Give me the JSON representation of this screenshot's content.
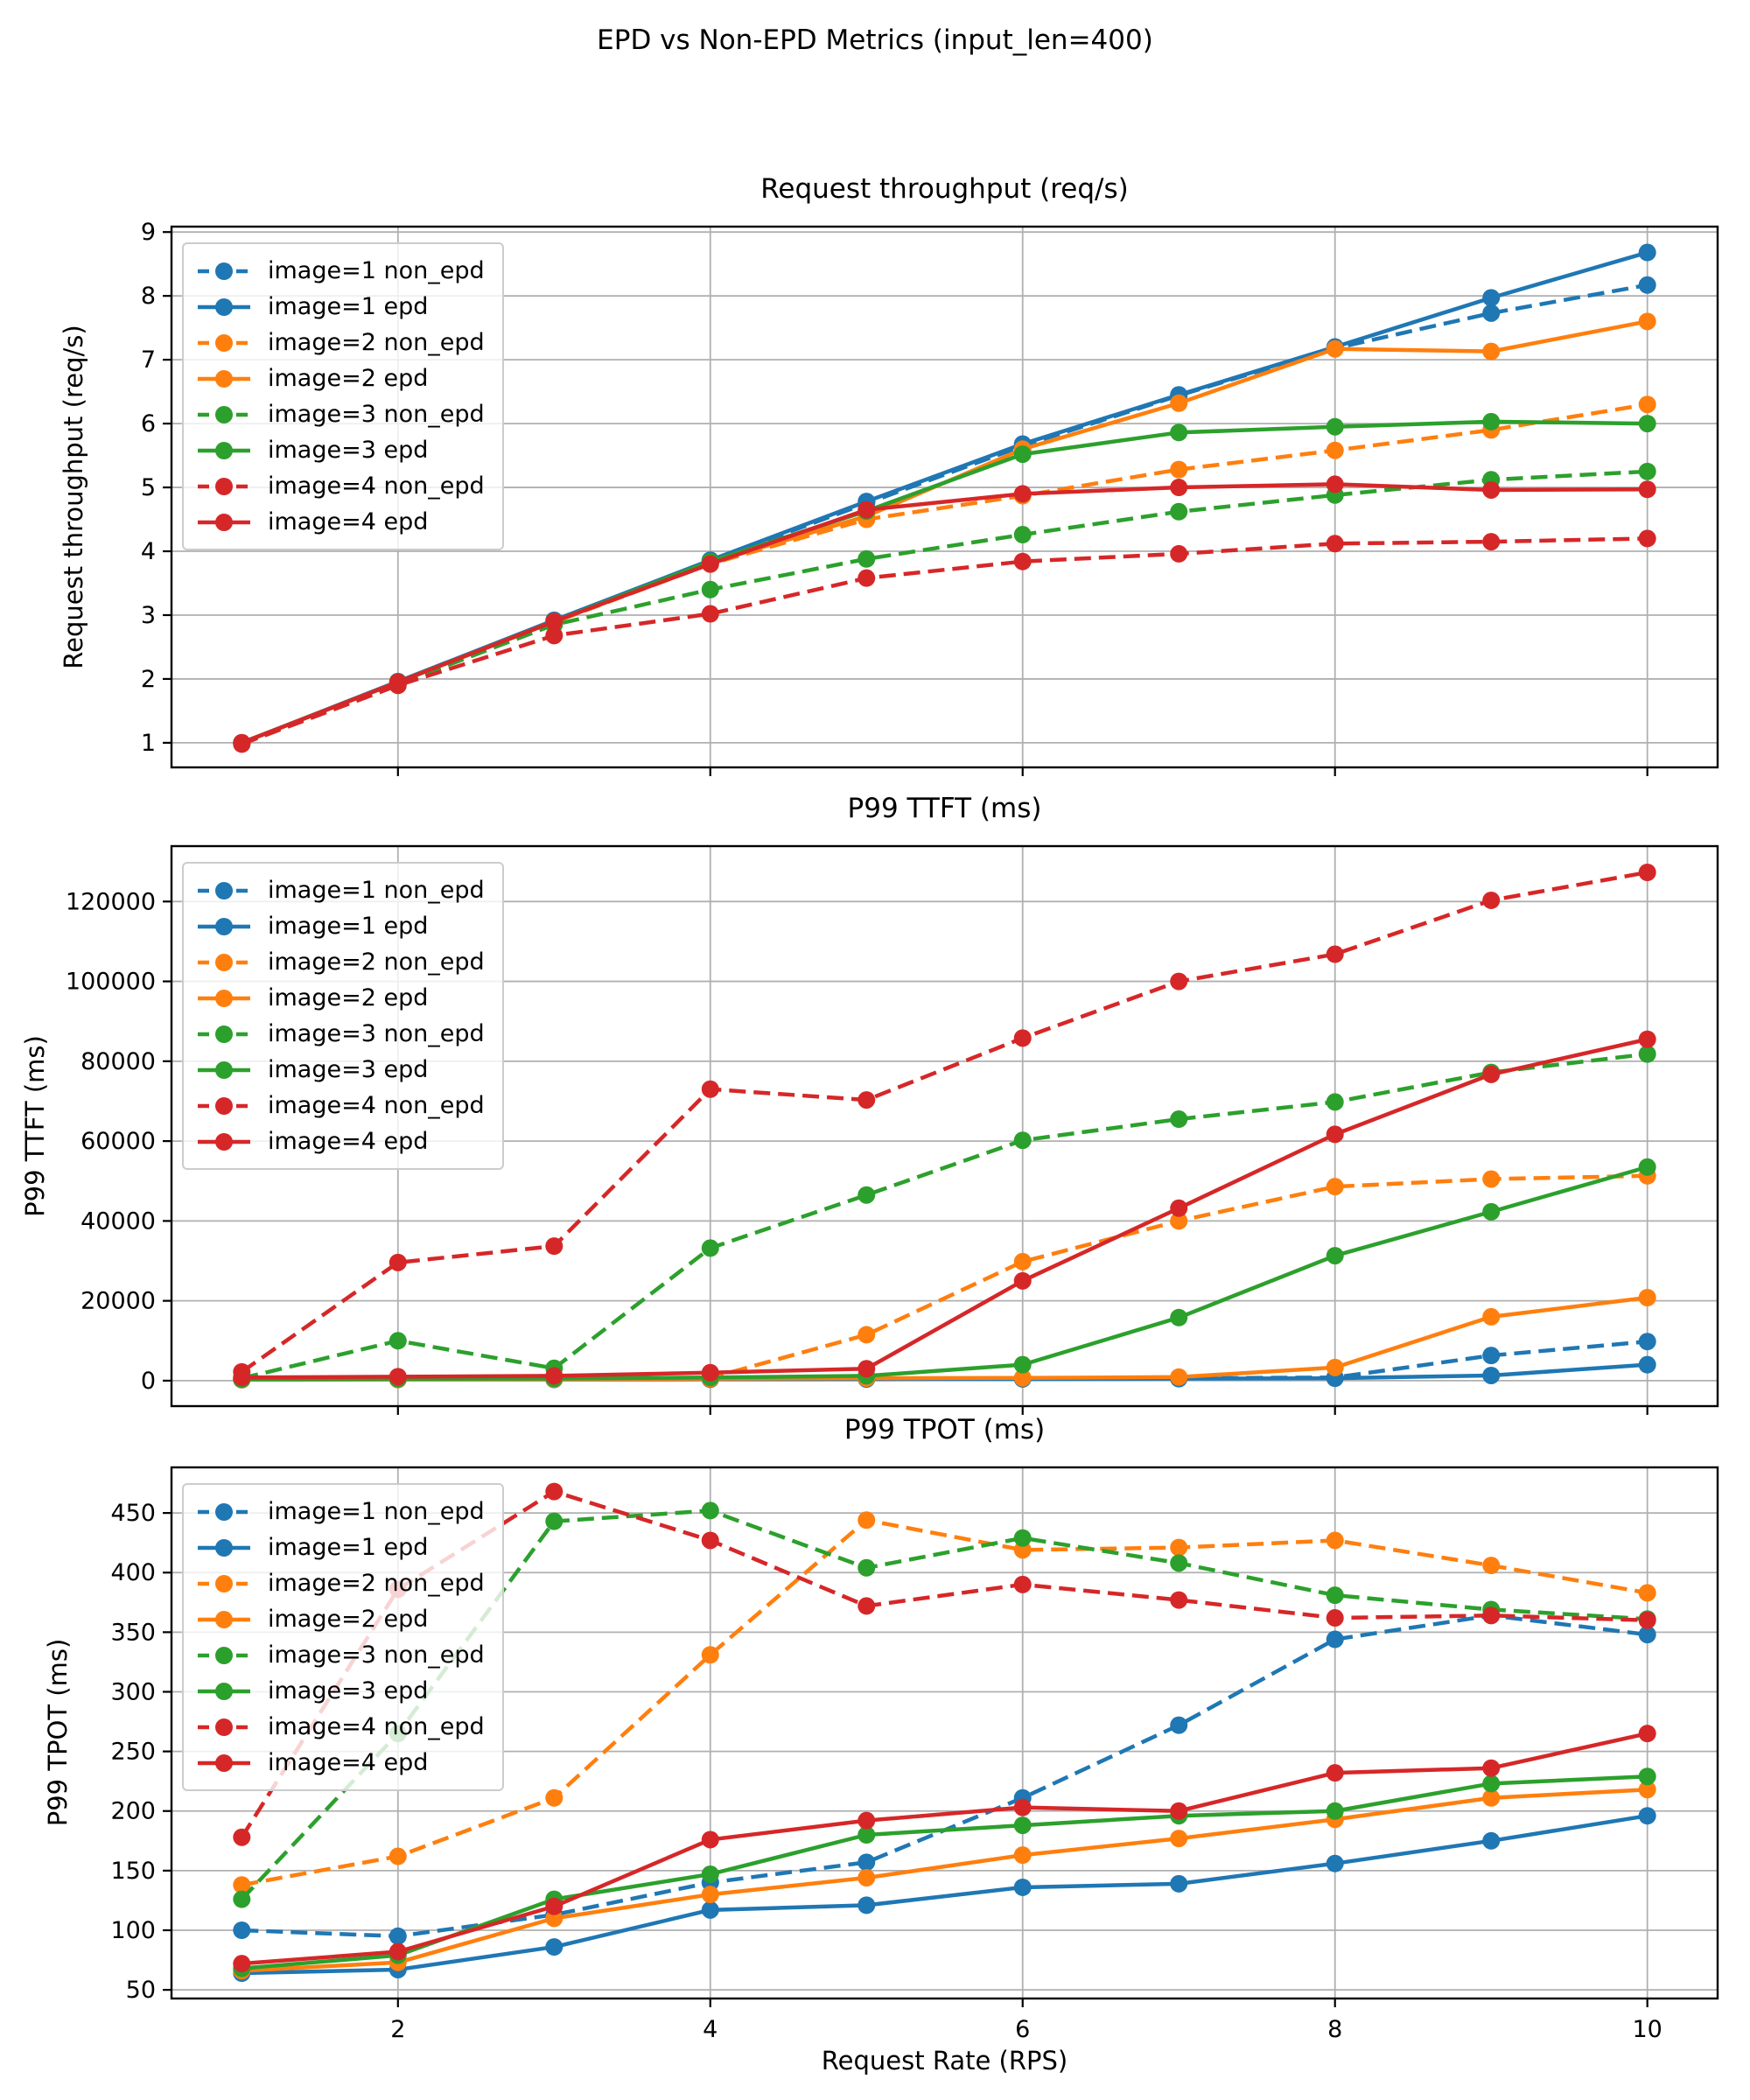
{
  "figure": {
    "suptitle": "EPD vs Non-EPD Metrics (input_len=400)",
    "xlabel": "Request Rate (RPS)"
  },
  "chart_data": [
    {
      "type": "line",
      "title": "Request throughput (req/s)",
      "ylabel": "Request throughput (req/s)",
      "x": [
        1,
        2,
        3,
        4,
        5,
        6,
        7,
        8,
        9,
        10
      ],
      "xlim": [
        0.55,
        10.45
      ],
      "ylim": [
        0.615,
        9.085
      ],
      "xticks": [
        2,
        4,
        6,
        8,
        10
      ],
      "show_xticklabels": false,
      "yticks": [
        1,
        2,
        3,
        4,
        5,
        6,
        7,
        8,
        9
      ],
      "grid": true,
      "legend_position": "upper left",
      "series": [
        {
          "name": "image=1 non_epd",
          "color": "#1f77b4",
          "dashed": true,
          "values": [
            1.0,
            1.95,
            2.9,
            3.85,
            4.75,
            5.65,
            6.44,
            7.18,
            7.73,
            8.17
          ]
        },
        {
          "name": "image=1 epd",
          "color": "#1f77b4",
          "dashed": false,
          "values": [
            1.0,
            1.96,
            2.92,
            3.86,
            4.78,
            5.68,
            6.45,
            7.2,
            7.97,
            8.68
          ]
        },
        {
          "name": "image=2 non_epd",
          "color": "#ff7f0e",
          "dashed": true,
          "values": [
            0.99,
            1.94,
            2.89,
            3.8,
            4.5,
            4.87,
            5.28,
            5.58,
            5.9,
            6.3
          ]
        },
        {
          "name": "image=2 epd",
          "color": "#ff7f0e",
          "dashed": false,
          "values": [
            1.0,
            1.95,
            2.9,
            3.82,
            4.55,
            5.6,
            6.32,
            7.17,
            7.13,
            7.6
          ]
        },
        {
          "name": "image=3 non_epd",
          "color": "#2ca02c",
          "dashed": true,
          "values": [
            0.99,
            1.92,
            2.85,
            3.4,
            3.88,
            4.26,
            4.62,
            4.88,
            5.12,
            5.25
          ]
        },
        {
          "name": "image=3 epd",
          "color": "#2ca02c",
          "dashed": false,
          "values": [
            1.0,
            1.95,
            2.9,
            3.84,
            4.63,
            5.52,
            5.86,
            5.95,
            6.03,
            6.0
          ]
        },
        {
          "name": "image=4 non_epd",
          "color": "#d62728",
          "dashed": true,
          "values": [
            0.98,
            1.9,
            2.68,
            3.02,
            3.58,
            3.84,
            3.96,
            4.12,
            4.15,
            4.2
          ]
        },
        {
          "name": "image=4 epd",
          "color": "#d62728",
          "dashed": false,
          "values": [
            1.0,
            1.95,
            2.9,
            3.8,
            4.65,
            4.9,
            5.0,
            5.05,
            4.96,
            4.97
          ]
        }
      ]
    },
    {
      "type": "line",
      "title": "P99 TTFT (ms)",
      "ylabel": "P99 TTFT (ms)",
      "x": [
        1,
        2,
        3,
        4,
        5,
        6,
        7,
        8,
        9,
        10
      ],
      "xlim": [
        0.55,
        10.45
      ],
      "ylim": [
        -6375,
        133875
      ],
      "xticks": [
        2,
        4,
        6,
        8,
        10
      ],
      "show_xticklabels": false,
      "yticks": [
        0,
        20000,
        40000,
        60000,
        80000,
        100000,
        120000
      ],
      "grid": true,
      "legend_position": "upper left",
      "series": [
        {
          "name": "image=1 non_epd",
          "color": "#1f77b4",
          "dashed": true,
          "values": [
            300,
            350,
            350,
            400,
            450,
            500,
            600,
            800,
            6300,
            9800
          ]
        },
        {
          "name": "image=1 epd",
          "color": "#1f77b4",
          "dashed": false,
          "values": [
            250,
            300,
            300,
            350,
            400,
            450,
            500,
            600,
            1300,
            4000
          ]
        },
        {
          "name": "image=2 non_epd",
          "color": "#ff7f0e",
          "dashed": true,
          "values": [
            350,
            400,
            450,
            700,
            11500,
            29800,
            40000,
            48600,
            50500,
            51300
          ]
        },
        {
          "name": "image=2 epd",
          "color": "#ff7f0e",
          "dashed": false,
          "values": [
            280,
            320,
            380,
            500,
            600,
            700,
            900,
            3300,
            16000,
            20800
          ]
        },
        {
          "name": "image=3 non_epd",
          "color": "#2ca02c",
          "dashed": true,
          "values": [
            600,
            10000,
            3100,
            33200,
            46500,
            60200,
            65500,
            69800,
            77200,
            81800
          ]
        },
        {
          "name": "image=3 epd",
          "color": "#2ca02c",
          "dashed": false,
          "values": [
            350,
            450,
            550,
            800,
            1200,
            4000,
            15800,
            31300,
            42300,
            53500
          ]
        },
        {
          "name": "image=4 non_epd",
          "color": "#d62728",
          "dashed": true,
          "values": [
            2200,
            29600,
            33700,
            73000,
            70300,
            85800,
            100000,
            106800,
            120300,
            127300
          ]
        },
        {
          "name": "image=4 epd",
          "color": "#d62728",
          "dashed": false,
          "values": [
            800,
            1000,
            1200,
            2000,
            3000,
            25000,
            43200,
            61700,
            76700,
            85500
          ]
        }
      ]
    },
    {
      "type": "line",
      "title": "P99 TPOT (ms)",
      "ylabel": "P99 TPOT (ms)",
      "x": [
        1,
        2,
        3,
        4,
        5,
        6,
        7,
        8,
        9,
        10
      ],
      "xlim": [
        0.55,
        10.45
      ],
      "ylim": [
        42.75,
        488.25
      ],
      "xticks": [
        2,
        4,
        6,
        8,
        10
      ],
      "show_xticklabels": true,
      "yticks": [
        50,
        100,
        150,
        200,
        250,
        300,
        350,
        400,
        450
      ],
      "grid": true,
      "legend_position": "upper left",
      "series": [
        {
          "name": "image=1 non_epd",
          "color": "#1f77b4",
          "dashed": true,
          "values": [
            100,
            95,
            113,
            140,
            157,
            211,
            272,
            344,
            364,
            348
          ]
        },
        {
          "name": "image=1 epd",
          "color": "#1f77b4",
          "dashed": false,
          "values": [
            64,
            67,
            86,
            117,
            121,
            136,
            139,
            156,
            175,
            196
          ]
        },
        {
          "name": "image=2 non_epd",
          "color": "#ff7f0e",
          "dashed": true,
          "values": [
            138,
            162,
            211,
            331,
            444,
            419,
            421,
            427,
            406,
            383
          ]
        },
        {
          "name": "image=2 epd",
          "color": "#ff7f0e",
          "dashed": false,
          "values": [
            66,
            73,
            110,
            130,
            144,
            163,
            177,
            193,
            211,
            218
          ]
        },
        {
          "name": "image=3 non_epd",
          "color": "#2ca02c",
          "dashed": true,
          "values": [
            126,
            265,
            443,
            452,
            404,
            429,
            408,
            381,
            369,
            361
          ]
        },
        {
          "name": "image=3 epd",
          "color": "#2ca02c",
          "dashed": false,
          "values": [
            68,
            79,
            126,
            147,
            180,
            188,
            196,
            200,
            223,
            229
          ]
        },
        {
          "name": "image=4 non_epd",
          "color": "#d62728",
          "dashed": true,
          "values": [
            178,
            386,
            468,
            427,
            372,
            390,
            377,
            362,
            364,
            360
          ]
        },
        {
          "name": "image=4 epd",
          "color": "#d62728",
          "dashed": false,
          "values": [
            72,
            82,
            120,
            176,
            192,
            203,
            200,
            232,
            236,
            265
          ]
        }
      ]
    }
  ]
}
